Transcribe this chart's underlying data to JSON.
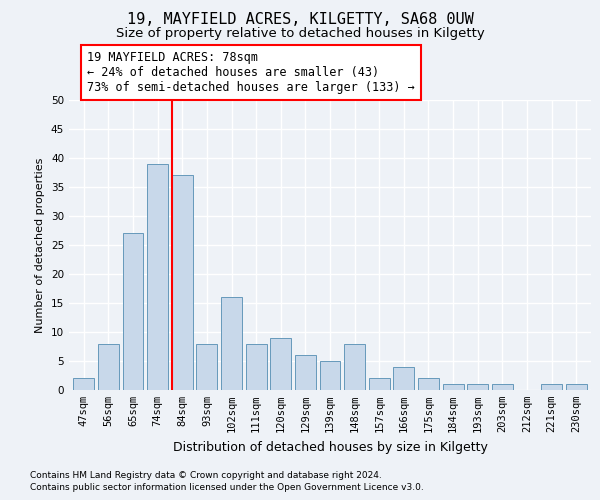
{
  "title1": "19, MAYFIELD ACRES, KILGETTY, SA68 0UW",
  "title2": "Size of property relative to detached houses in Kilgetty",
  "xlabel": "Distribution of detached houses by size in Kilgetty",
  "ylabel": "Number of detached properties",
  "categories": [
    "47sqm",
    "56sqm",
    "65sqm",
    "74sqm",
    "84sqm",
    "93sqm",
    "102sqm",
    "111sqm",
    "120sqm",
    "129sqm",
    "139sqm",
    "148sqm",
    "157sqm",
    "166sqm",
    "175sqm",
    "184sqm",
    "193sqm",
    "203sqm",
    "212sqm",
    "221sqm",
    "230sqm"
  ],
  "values": [
    2,
    8,
    27,
    39,
    37,
    8,
    16,
    8,
    9,
    6,
    5,
    8,
    2,
    4,
    2,
    1,
    1,
    1,
    0,
    1,
    1
  ],
  "bar_color": "#c8d8ea",
  "bar_edge_color": "#6699bb",
  "red_line_x": 3.57,
  "annotation_text": "19 MAYFIELD ACRES: 78sqm\n← 24% of detached houses are smaller (43)\n73% of semi-detached houses are larger (133) →",
  "footnote1": "Contains HM Land Registry data © Crown copyright and database right 2024.",
  "footnote2": "Contains public sector information licensed under the Open Government Licence v3.0.",
  "ylim": [
    0,
    50
  ],
  "yticks": [
    0,
    5,
    10,
    15,
    20,
    25,
    30,
    35,
    40,
    45,
    50
  ],
  "background_color": "#eef2f7",
  "grid_color": "#ffffff",
  "title1_fontsize": 11,
  "title2_fontsize": 9.5,
  "annotation_fontsize": 8.5,
  "ylabel_fontsize": 8,
  "xlabel_fontsize": 9,
  "tick_fontsize": 7.5,
  "footnote_fontsize": 6.5
}
